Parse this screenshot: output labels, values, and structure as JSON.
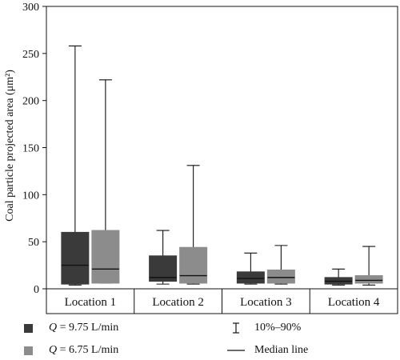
{
  "chart_data": {
    "type": "box",
    "categories": [
      "Location 1",
      "Location 2",
      "Location 3",
      "Location 4"
    ],
    "ylabel": "Coal particle projected area (μm²)",
    "ylim": [
      0,
      300
    ],
    "yticks": [
      0,
      50,
      100,
      150,
      200,
      250,
      300
    ],
    "grid": false,
    "legend_position": "bottom",
    "series": [
      {
        "name": "Q = 9.75 L/min",
        "color": "#3a3a3a",
        "boxes": [
          {
            "p10": 4,
            "q1": 5,
            "median": 25,
            "q3": 60,
            "p90": 258
          },
          {
            "p10": 5,
            "q1": 8,
            "median": 12,
            "q3": 35,
            "p90": 62
          },
          {
            "p10": 5,
            "q1": 6,
            "median": 11,
            "q3": 18,
            "p90": 38
          },
          {
            "p10": 4,
            "q1": 5,
            "median": 8,
            "q3": 12,
            "p90": 21
          }
        ]
      },
      {
        "name": "Q = 6.75 L/min",
        "color": "#8c8c8c",
        "boxes": [
          {
            "p10": 6,
            "q1": 6,
            "median": 21,
            "q3": 62,
            "p90": 222
          },
          {
            "p10": 5,
            "q1": 6,
            "median": 14,
            "q3": 44,
            "p90": 131
          },
          {
            "p10": 5,
            "q1": 6,
            "median": 12,
            "q3": 20,
            "p90": 46
          },
          {
            "p10": 4,
            "q1": 6,
            "median": 9,
            "q3": 14,
            "p90": 45
          }
        ]
      }
    ]
  },
  "legend": {
    "series1": {
      "q": "Q",
      "rest": " = 9.75 L/min"
    },
    "series2": {
      "q": "Q",
      "rest": " = 6.75 L/min"
    },
    "whisker_label": "10%–90%",
    "median_label": "Median line"
  }
}
